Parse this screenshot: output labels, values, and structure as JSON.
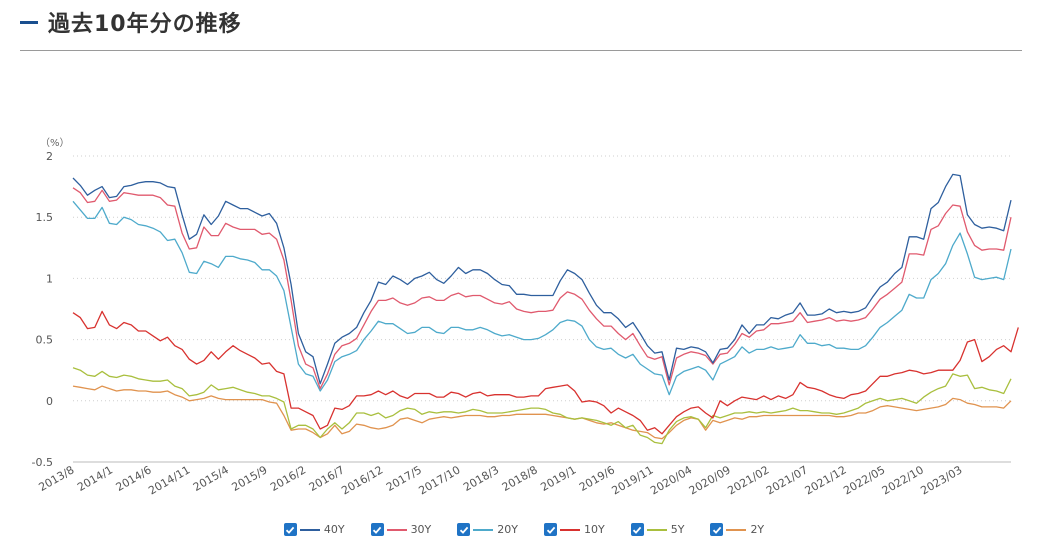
{
  "header": {
    "title": "過去10年分の推移"
  },
  "chart_data": {
    "type": "line",
    "unit_label": "（%）",
    "ylim": [
      -0.5,
      2
    ],
    "yticks": [
      "2",
      "1.5",
      "1",
      "0.5",
      "0",
      "-0.5"
    ],
    "xtick_labels": [
      "2013/8",
      "2014/1",
      "2014/6",
      "2014/11",
      "2015/4",
      "2015/9",
      "2016/2",
      "2016/7",
      "2016/12",
      "2017/5",
      "2017/10",
      "2018/3",
      "2018/8",
      "2019/1",
      "2019/6",
      "2019/11",
      "2020/04",
      "2020/09",
      "2021/02",
      "2021/07",
      "2021/12",
      "2022/05",
      "2022/10",
      "2023/03"
    ],
    "grid": true,
    "legend_position": "bottom",
    "series": [
      {
        "name": "40Y",
        "color": "#2e5f9e",
        "values": [
          1.82,
          1.76,
          1.68,
          1.72,
          1.75,
          1.66,
          1.67,
          1.75,
          1.76,
          1.78,
          1.79,
          1.79,
          1.78,
          1.75,
          1.74,
          1.52,
          1.32,
          1.36,
          1.52,
          1.44,
          1.51,
          1.63,
          1.6,
          1.57,
          1.57,
          1.54,
          1.51,
          1.53,
          1.45,
          1.25,
          0.95,
          0.55,
          0.4,
          0.36,
          0.14,
          0.3,
          0.47,
          0.52,
          0.55,
          0.6,
          0.72,
          0.82,
          0.97,
          0.95,
          1.02,
          0.99,
          0.95,
          1.0,
          1.02,
          1.05,
          0.99,
          0.96,
          1.02,
          1.09,
          1.04,
          1.07,
          1.07,
          1.04,
          0.99,
          0.95,
          0.94,
          0.87,
          0.87,
          0.86,
          0.86,
          0.86,
          0.86,
          0.98,
          1.07,
          1.04,
          0.99,
          0.88,
          0.78,
          0.72,
          0.72,
          0.67,
          0.6,
          0.64,
          0.55,
          0.45,
          0.39,
          0.4,
          0.17,
          0.43,
          0.42,
          0.44,
          0.43,
          0.4,
          0.31,
          0.42,
          0.43,
          0.5,
          0.62,
          0.55,
          0.62,
          0.62,
          0.68,
          0.67,
          0.7,
          0.72,
          0.8,
          0.7,
          0.7,
          0.71,
          0.75,
          0.72,
          0.73,
          0.72,
          0.73,
          0.76,
          0.85,
          0.93,
          0.97,
          1.04,
          1.09,
          1.34,
          1.34,
          1.32,
          1.57,
          1.62,
          1.75,
          1.85,
          1.84,
          1.52,
          1.44,
          1.41,
          1.42,
          1.41,
          1.39,
          1.64
        ]
      },
      {
        "name": "30Y",
        "color": "#e05a6e",
        "values": [
          1.74,
          1.7,
          1.62,
          1.63,
          1.72,
          1.63,
          1.64,
          1.7,
          1.69,
          1.68,
          1.68,
          1.68,
          1.66,
          1.6,
          1.59,
          1.37,
          1.24,
          1.25,
          1.42,
          1.35,
          1.35,
          1.45,
          1.42,
          1.4,
          1.4,
          1.4,
          1.36,
          1.37,
          1.32,
          1.15,
          0.82,
          0.45,
          0.3,
          0.27,
          0.1,
          0.22,
          0.38,
          0.45,
          0.47,
          0.51,
          0.62,
          0.73,
          0.82,
          0.82,
          0.84,
          0.8,
          0.78,
          0.8,
          0.84,
          0.85,
          0.82,
          0.82,
          0.86,
          0.88,
          0.85,
          0.86,
          0.86,
          0.83,
          0.8,
          0.79,
          0.81,
          0.75,
          0.73,
          0.72,
          0.73,
          0.73,
          0.74,
          0.84,
          0.89,
          0.87,
          0.83,
          0.74,
          0.67,
          0.61,
          0.61,
          0.55,
          0.5,
          0.55,
          0.45,
          0.36,
          0.34,
          0.36,
          0.13,
          0.35,
          0.38,
          0.4,
          0.39,
          0.37,
          0.3,
          0.38,
          0.39,
          0.46,
          0.55,
          0.52,
          0.57,
          0.58,
          0.63,
          0.63,
          0.64,
          0.65,
          0.72,
          0.64,
          0.65,
          0.66,
          0.68,
          0.65,
          0.66,
          0.65,
          0.66,
          0.68,
          0.75,
          0.83,
          0.87,
          0.92,
          0.97,
          1.2,
          1.2,
          1.19,
          1.4,
          1.43,
          1.53,
          1.6,
          1.59,
          1.38,
          1.27,
          1.23,
          1.24,
          1.24,
          1.23,
          1.5
        ]
      },
      {
        "name": "20Y",
        "color": "#4eaacb",
        "values": [
          1.63,
          1.56,
          1.49,
          1.49,
          1.58,
          1.45,
          1.44,
          1.5,
          1.48,
          1.44,
          1.43,
          1.41,
          1.38,
          1.31,
          1.32,
          1.21,
          1.05,
          1.04,
          1.14,
          1.12,
          1.09,
          1.18,
          1.18,
          1.16,
          1.15,
          1.13,
          1.07,
          1.07,
          1.02,
          0.9,
          0.6,
          0.3,
          0.22,
          0.2,
          0.08,
          0.17,
          0.32,
          0.36,
          0.38,
          0.41,
          0.5,
          0.57,
          0.65,
          0.63,
          0.63,
          0.59,
          0.55,
          0.56,
          0.6,
          0.6,
          0.56,
          0.55,
          0.6,
          0.6,
          0.58,
          0.58,
          0.6,
          0.58,
          0.55,
          0.53,
          0.54,
          0.52,
          0.5,
          0.5,
          0.51,
          0.54,
          0.58,
          0.64,
          0.66,
          0.65,
          0.61,
          0.5,
          0.44,
          0.42,
          0.43,
          0.38,
          0.35,
          0.38,
          0.3,
          0.26,
          0.22,
          0.21,
          0.05,
          0.2,
          0.24,
          0.26,
          0.28,
          0.25,
          0.17,
          0.3,
          0.33,
          0.36,
          0.44,
          0.39,
          0.42,
          0.42,
          0.44,
          0.42,
          0.43,
          0.44,
          0.54,
          0.47,
          0.47,
          0.45,
          0.46,
          0.43,
          0.43,
          0.42,
          0.42,
          0.45,
          0.52,
          0.6,
          0.64,
          0.69,
          0.74,
          0.87,
          0.84,
          0.84,
          0.99,
          1.04,
          1.12,
          1.27,
          1.37,
          1.2,
          1.01,
          0.99,
          1.0,
          1.01,
          0.99,
          1.24
        ]
      },
      {
        "name": "10Y",
        "color": "#d8322f",
        "values": [
          0.72,
          0.68,
          0.59,
          0.6,
          0.73,
          0.62,
          0.59,
          0.64,
          0.62,
          0.57,
          0.57,
          0.53,
          0.49,
          0.52,
          0.45,
          0.42,
          0.34,
          0.3,
          0.33,
          0.4,
          0.34,
          0.4,
          0.45,
          0.41,
          0.38,
          0.35,
          0.3,
          0.31,
          0.24,
          0.22,
          -0.06,
          -0.06,
          -0.09,
          -0.12,
          -0.23,
          -0.2,
          -0.06,
          -0.07,
          -0.04,
          0.04,
          0.04,
          0.05,
          0.08,
          0.05,
          0.08,
          0.04,
          0.02,
          0.06,
          0.06,
          0.06,
          0.03,
          0.03,
          0.07,
          0.06,
          0.03,
          0.06,
          0.07,
          0.04,
          0.05,
          0.05,
          0.05,
          0.03,
          0.03,
          0.04,
          0.04,
          0.1,
          0.11,
          0.12,
          0.13,
          0.08,
          -0.01,
          0.0,
          -0.01,
          -0.04,
          -0.1,
          -0.06,
          -0.09,
          -0.12,
          -0.16,
          -0.24,
          -0.22,
          -0.27,
          -0.2,
          -0.13,
          -0.09,
          -0.06,
          -0.05,
          -0.1,
          -0.14,
          0.0,
          -0.04,
          0.0,
          0.03,
          0.02,
          0.01,
          0.04,
          0.01,
          0.04,
          0.02,
          0.05,
          0.15,
          0.11,
          0.1,
          0.08,
          0.05,
          0.03,
          0.02,
          0.05,
          0.06,
          0.08,
          0.14,
          0.2,
          0.2,
          0.22,
          0.23,
          0.25,
          0.24,
          0.22,
          0.23,
          0.25,
          0.25,
          0.25,
          0.33,
          0.48,
          0.5,
          0.32,
          0.36,
          0.42,
          0.45,
          0.4,
          0.6
        ]
      },
      {
        "name": "5Y",
        "color": "#a9bf3e",
        "values": [
          0.27,
          0.25,
          0.21,
          0.2,
          0.24,
          0.2,
          0.19,
          0.21,
          0.2,
          0.18,
          0.17,
          0.16,
          0.16,
          0.17,
          0.12,
          0.1,
          0.04,
          0.05,
          0.07,
          0.13,
          0.09,
          0.1,
          0.11,
          0.09,
          0.07,
          0.06,
          0.04,
          0.04,
          0.02,
          -0.01,
          -0.23,
          -0.2,
          -0.2,
          -0.23,
          -0.3,
          -0.23,
          -0.18,
          -0.23,
          -0.18,
          -0.1,
          -0.1,
          -0.12,
          -0.1,
          -0.14,
          -0.12,
          -0.08,
          -0.06,
          -0.07,
          -0.11,
          -0.09,
          -0.1,
          -0.09,
          -0.09,
          -0.1,
          -0.09,
          -0.07,
          -0.08,
          -0.1,
          -0.1,
          -0.1,
          -0.09,
          -0.08,
          -0.07,
          -0.06,
          -0.06,
          -0.07,
          -0.1,
          -0.11,
          -0.14,
          -0.15,
          -0.14,
          -0.15,
          -0.16,
          -0.18,
          -0.2,
          -0.17,
          -0.22,
          -0.2,
          -0.28,
          -0.3,
          -0.34,
          -0.35,
          -0.24,
          -0.17,
          -0.14,
          -0.13,
          -0.15,
          -0.22,
          -0.12,
          -0.14,
          -0.12,
          -0.1,
          -0.1,
          -0.09,
          -0.1,
          -0.09,
          -0.1,
          -0.09,
          -0.08,
          -0.06,
          -0.08,
          -0.08,
          -0.09,
          -0.1,
          -0.1,
          -0.11,
          -0.1,
          -0.08,
          -0.06,
          -0.02,
          0.0,
          0.02,
          0.0,
          0.01,
          0.02,
          0.0,
          -0.02,
          0.03,
          0.07,
          0.1,
          0.12,
          0.22,
          0.2,
          0.21,
          0.1,
          0.11,
          0.09,
          0.08,
          0.06,
          0.18
        ]
      },
      {
        "name": "2Y",
        "color": "#e0934f",
        "values": [
          0.12,
          0.11,
          0.1,
          0.09,
          0.12,
          0.1,
          0.08,
          0.09,
          0.09,
          0.08,
          0.08,
          0.07,
          0.07,
          0.08,
          0.05,
          0.03,
          0.0,
          0.01,
          0.02,
          0.04,
          0.02,
          0.01,
          0.01,
          0.01,
          0.01,
          0.01,
          0.01,
          -0.01,
          -0.02,
          -0.12,
          -0.24,
          -0.23,
          -0.23,
          -0.26,
          -0.3,
          -0.27,
          -0.2,
          -0.27,
          -0.25,
          -0.19,
          -0.2,
          -0.22,
          -0.23,
          -0.22,
          -0.2,
          -0.15,
          -0.14,
          -0.16,
          -0.18,
          -0.15,
          -0.14,
          -0.13,
          -0.14,
          -0.13,
          -0.12,
          -0.12,
          -0.12,
          -0.13,
          -0.13,
          -0.12,
          -0.12,
          -0.11,
          -0.11,
          -0.11,
          -0.11,
          -0.11,
          -0.12,
          -0.13,
          -0.14,
          -0.15,
          -0.14,
          -0.16,
          -0.18,
          -0.19,
          -0.18,
          -0.2,
          -0.22,
          -0.24,
          -0.25,
          -0.26,
          -0.3,
          -0.31,
          -0.26,
          -0.2,
          -0.16,
          -0.14,
          -0.15,
          -0.24,
          -0.16,
          -0.18,
          -0.16,
          -0.14,
          -0.15,
          -0.13,
          -0.13,
          -0.12,
          -0.12,
          -0.12,
          -0.12,
          -0.12,
          -0.12,
          -0.12,
          -0.12,
          -0.12,
          -0.12,
          -0.13,
          -0.13,
          -0.12,
          -0.1,
          -0.1,
          -0.08,
          -0.05,
          -0.04,
          -0.05,
          -0.06,
          -0.07,
          -0.08,
          -0.07,
          -0.06,
          -0.05,
          -0.03,
          0.02,
          0.01,
          -0.02,
          -0.03,
          -0.05,
          -0.05,
          -0.05,
          -0.06,
          0.0
        ]
      }
    ]
  }
}
